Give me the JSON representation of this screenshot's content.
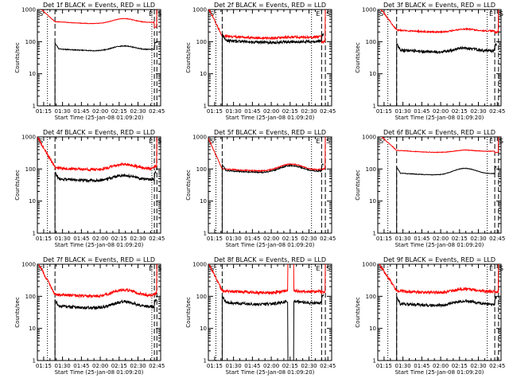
{
  "chart_data": {
    "type": "line",
    "x_ticks": [
      "01:15",
      "01:30",
      "01:45",
      "02:00",
      "02:15",
      "02:30",
      "02:45"
    ],
    "xlabel": "Start Time (25-Jan-08 01:09:20)",
    "ylabel": "Counts/sec",
    "y_ticks": [
      "1",
      "10",
      "100",
      "1000"
    ],
    "ylim": [
      1,
      1000
    ],
    "yscale": "log",
    "x_range_min": [
      70,
      168
    ],
    "corner_labels": {
      "start": "S",
      "end_inner": "E",
      "end_outer": "S"
    },
    "series_colors": {
      "events": "#000000",
      "lld": "#ff0000"
    },
    "panels": [
      {
        "title": "Det 1f BLACK = Events, RED = LLD",
        "lld": {
          "start": 1300,
          "base": 420,
          "hump": 160,
          "end_tail": 280,
          "noise": 0.02
        },
        "events": {
          "base": 60,
          "hump": 22,
          "noise": 0.03
        },
        "lines": {
          "dotted": [
            78,
            161
          ],
          "dashed": [
            84,
            163,
            165
          ]
        }
      },
      {
        "title": "Det 2f BLACK = Events, RED = LLD",
        "lld": {
          "start": 1100,
          "base": 150,
          "hump": 10,
          "end_tail": 95,
          "noise": 0.08
        },
        "events": {
          "base": 110,
          "hump": 5,
          "noise": 0.1
        },
        "lines": {
          "dotted": [
            76,
            152
          ],
          "dashed": [
            81,
            160,
            163
          ]
        }
      },
      {
        "title": "Det 3f BLACK = Events, RED = LLD",
        "lld": {
          "start": 1400,
          "base": 230,
          "hump": 50,
          "end_tail": 190,
          "noise": 0.05
        },
        "events": {
          "base": 55,
          "hump": 15,
          "noise": 0.1
        },
        "lines": {
          "dotted": [
            78,
            157
          ],
          "dashed": [
            85,
            163,
            166
          ]
        }
      },
      {
        "title": "Det 4f BLACK = Events, RED = LLD",
        "lld": {
          "start": 1000,
          "base": 110,
          "hump": 45,
          "end_tail": 120,
          "noise": 0.1
        },
        "events": {
          "base": 50,
          "hump": 20,
          "noise": 0.1
        },
        "lines": {
          "dotted": [
            78,
            161
          ],
          "dashed": [
            84,
            163,
            165
          ]
        }
      },
      {
        "title": "Det 5f BLACK = Events, RED = LLD",
        "lld": {
          "start": 900,
          "base": 100,
          "hump": 55,
          "end_tail": 95,
          "noise": 0.04
        },
        "events": {
          "base": 90,
          "hump": 50,
          "noise": 0.04
        },
        "lines": {
          "dotted": [
            76,
            152
          ],
          "dashed": [
            81,
            160,
            163
          ]
        }
      },
      {
        "title": "Det 6f BLACK = Events, RED = LLD",
        "lld": {
          "start": 1300,
          "base": 380,
          "hump": 60,
          "end_tail": 320,
          "noise": 0.02
        },
        "events": {
          "base": 75,
          "hump": 40,
          "noise": 0.02
        },
        "lines": {
          "dotted": [
            78,
            157
          ],
          "dashed": [
            85,
            163,
            166
          ]
        }
      },
      {
        "title": "Det 7f BLACK = Events, RED = LLD",
        "lld": {
          "start": 1200,
          "base": 115,
          "hump": 60,
          "end_tail": 120,
          "noise": 0.1
        },
        "events": {
          "base": 50,
          "hump": 25,
          "noise": 0.1
        },
        "lines": {
          "dotted": [
            78,
            161
          ],
          "dashed": [
            84,
            163,
            165
          ]
        }
      },
      {
        "title": "Det 8f BLACK = Events, RED = LLD",
        "lld": {
          "start": 1100,
          "base": 150,
          "hump": 20,
          "end_tail": 130,
          "noise": 0.1
        },
        "events": {
          "base": 65,
          "hump": 15,
          "noise": 0.1
        },
        "dropout": [
          133,
          138
        ],
        "lines": {
          "dotted": [
            76,
            152
          ],
          "dashed": [
            81,
            160,
            163
          ]
        }
      },
      {
        "title": "Det 9f BLACK = Events, RED = LLD",
        "lld": {
          "start": 1200,
          "base": 150,
          "hump": 40,
          "end_tail": 130,
          "noise": 0.1
        },
        "events": {
          "base": 60,
          "hump": 20,
          "noise": 0.1
        },
        "lines": {
          "dotted": [
            78,
            157
          ],
          "dashed": [
            85,
            163,
            166
          ]
        }
      }
    ]
  }
}
